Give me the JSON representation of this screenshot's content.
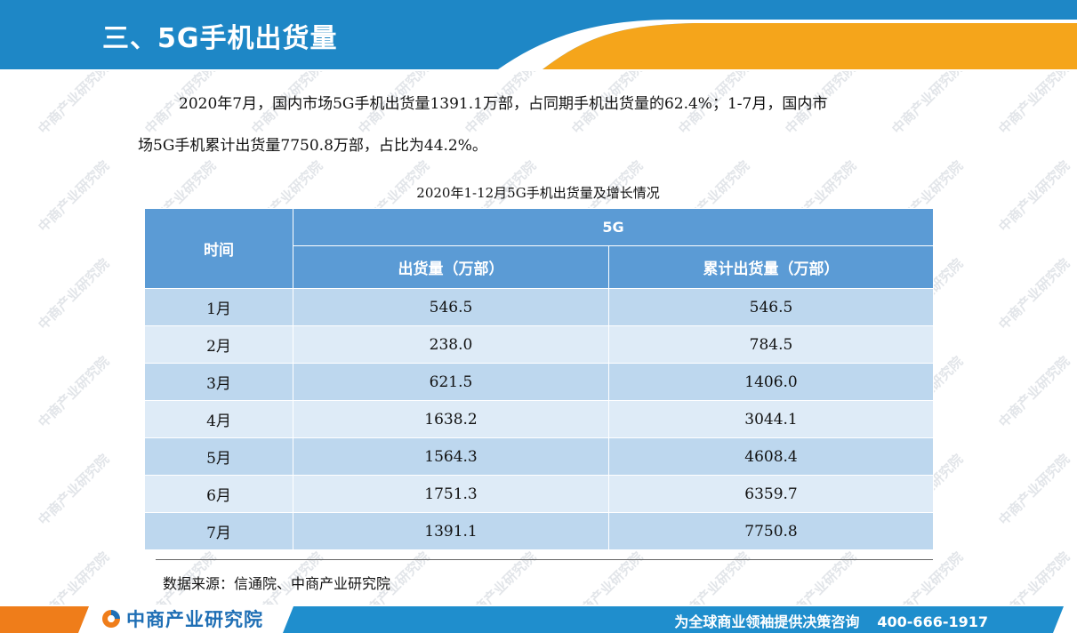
{
  "header": {
    "title": "三、5G手机出货量"
  },
  "paragraph": {
    "line1": "2020年7月，国内市场5G手机出货量1391.1万部，占同期手机出货量的62.4%；1-7月，国内市",
    "line2": "场5G手机累计出货量7750.8万部，占比为44.2%。"
  },
  "table": {
    "caption": "2020年1-12月5G手机出货量及增长情况",
    "header_time": "时间",
    "header_group": "5G",
    "header_shipment": "出货量（万部）",
    "header_cumulative": "累计出货量（万部）",
    "rows": [
      {
        "month": "1月",
        "shipment": "546.5",
        "cumulative": "546.5"
      },
      {
        "month": "2月",
        "shipment": "238.0",
        "cumulative": "784.5"
      },
      {
        "month": "3月",
        "shipment": "621.5",
        "cumulative": "1406.0"
      },
      {
        "month": "4月",
        "shipment": "1638.2",
        "cumulative": "3044.1"
      },
      {
        "month": "5月",
        "shipment": "1564.3",
        "cumulative": "4608.4"
      },
      {
        "month": "6月",
        "shipment": "1751.3",
        "cumulative": "6359.7"
      },
      {
        "month": "7月",
        "shipment": "1391.1",
        "cumulative": "7750.8"
      }
    ]
  },
  "source": "数据来源：信通院、中商产业研究院",
  "watermark": "中商产业研究院",
  "footer": {
    "logo_text": "中商产业研究院",
    "slogan": "为全球商业领袖提供决策咨询",
    "phone": "400-666-1917"
  },
  "colors": {
    "header_blue": "#1e87c6",
    "header_orange": "#f5a51b",
    "table_header": "#5b9bd5",
    "row_dark": "#bdd7ee",
    "row_light": "#deebf7",
    "footer_orange": "#ef7d1a",
    "footer_blue": "#1f8ecd"
  }
}
